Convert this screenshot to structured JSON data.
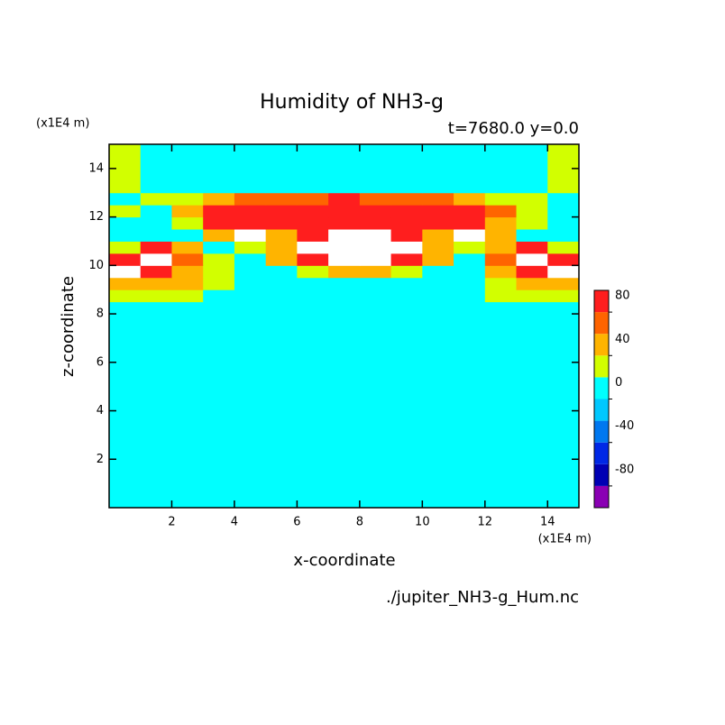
{
  "chart_data": {
    "type": "contour",
    "title": "Humidity of NH3-g",
    "subtitle": "t=7680.0 y=0.0",
    "x_label": "x-coordinate",
    "y_label": "z-coordinate",
    "x_unit": "(x1E4 m)",
    "y_unit": "(x1E4 m)",
    "source": "./jupiter_NH3-g_Hum.nc",
    "xlim": [
      0,
      15
    ],
    "ylim": [
      0,
      15
    ],
    "xticks": [
      2,
      4,
      6,
      8,
      10,
      12,
      14
    ],
    "yticks": [
      2,
      4,
      6,
      8,
      10,
      12,
      14
    ],
    "x_edges": [
      0,
      1,
      2,
      3,
      4,
      5,
      6,
      7,
      8,
      9,
      10,
      11,
      12,
      13,
      14,
      15
    ],
    "z_edges": [
      0,
      8.5,
      9,
      9.5,
      10,
      10.5,
      11,
      11.5,
      12,
      12.5,
      13,
      15
    ],
    "z": [
      [
        10,
        10,
        10,
        10,
        10,
        10,
        10,
        10,
        10,
        10,
        10,
        10,
        10,
        10,
        10
      ],
      [
        30,
        30,
        30,
        10,
        10,
        10,
        10,
        10,
        10,
        10,
        10,
        10,
        30,
        30,
        30
      ],
      [
        50,
        50,
        50,
        30,
        10,
        10,
        10,
        10,
        10,
        10,
        10,
        10,
        30,
        50,
        50
      ],
      [
        110,
        90,
        50,
        30,
        10,
        10,
        30,
        50,
        50,
        30,
        10,
        10,
        50,
        90,
        110
      ],
      [
        90,
        110,
        70,
        30,
        10,
        50,
        90,
        110,
        110,
        90,
        50,
        10,
        70,
        110,
        90
      ],
      [
        30,
        90,
        50,
        10,
        30,
        50,
        110,
        110,
        110,
        110,
        50,
        30,
        50,
        90,
        30
      ],
      [
        10,
        10,
        10,
        50,
        110,
        50,
        90,
        110,
        110,
        90,
        50,
        110,
        50,
        10,
        10
      ],
      [
        10,
        10,
        30,
        90,
        90,
        90,
        90,
        90,
        90,
        90,
        90,
        90,
        50,
        30,
        10
      ],
      [
        30,
        10,
        50,
        90,
        90,
        90,
        90,
        90,
        90,
        90,
        90,
        90,
        70,
        30,
        10
      ],
      [
        10,
        30,
        30,
        50,
        70,
        70,
        70,
        90,
        70,
        70,
        70,
        50,
        30,
        30,
        10
      ],
      [
        30,
        10,
        10,
        10,
        10,
        10,
        10,
        10,
        10,
        10,
        10,
        10,
        10,
        10,
        30
      ]
    ],
    "levels": [
      -100,
      -80,
      -60,
      -40,
      -20,
      0,
      20,
      40,
      60,
      80,
      100
    ],
    "colors": [
      "#8a00b4",
      "#0000b4",
      "#0028e6",
      "#0078f0",
      "#00c8ff",
      "#00ffff",
      "#d2ff00",
      "#ffb400",
      "#ff6400",
      "#ff1e1e",
      "#ffb4b4"
    ],
    "above_color": "#ffffff",
    "cbticks": [
      -80,
      -40,
      0,
      40,
      80
    ]
  }
}
